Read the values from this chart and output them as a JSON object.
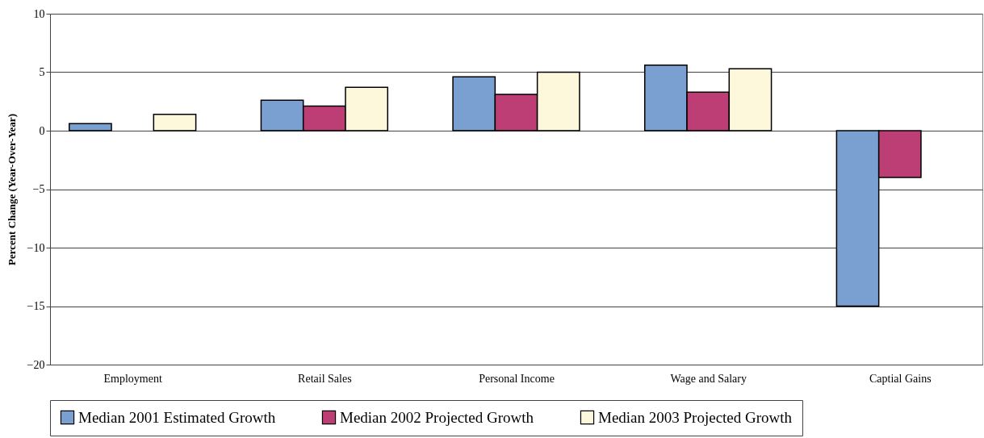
{
  "chart_data": {
    "type": "bar",
    "ylabel": "Percent Change (Year-Over-Year)",
    "categories": [
      "Employment",
      "Retail Sales",
      "Personal Income",
      "Wage and Salary",
      "Captial Gains"
    ],
    "series": [
      {
        "name": "Median 2001 Estimated Growth",
        "color": "#7a9fd1",
        "values": [
          0.6,
          2.6,
          4.6,
          5.6,
          -15
        ]
      },
      {
        "name": "Median 2002 Projected Growth",
        "color": "#bc3e74",
        "values": [
          null,
          2.1,
          3.1,
          3.3,
          -4.0
        ]
      },
      {
        "name": "Median 2003 Projected Growth",
        "color": "#fdf8dc",
        "values": [
          1.4,
          3.7,
          5.0,
          5.3,
          null
        ]
      }
    ],
    "ylim": [
      -20,
      10
    ],
    "yticks": [
      -20,
      -15,
      -10,
      -5,
      0,
      5,
      10
    ],
    "grid": "y",
    "legend": "bottom"
  }
}
